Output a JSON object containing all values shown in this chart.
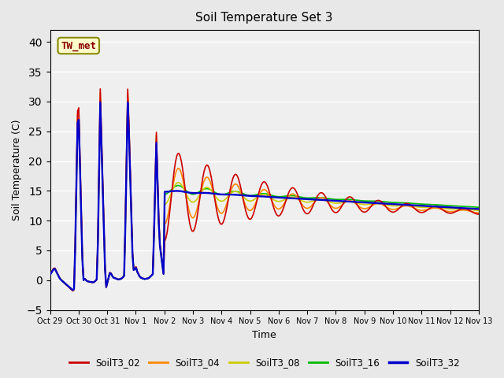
{
  "title": "Soil Temperature Set 3",
  "xlabel": "Time",
  "ylabel": "Soil Temperature (C)",
  "ylim": [
    -5,
    42
  ],
  "yticks": [
    -5,
    0,
    5,
    10,
    15,
    20,
    25,
    30,
    35,
    40
  ],
  "colors": {
    "SoilT3_02": "#cc0000",
    "SoilT3_04": "#ff8800",
    "SoilT3_08": "#cccc00",
    "SoilT3_16": "#00bb00",
    "SoilT3_32": "#0000cc"
  },
  "annotation_text": "TW_met",
  "annotation_color": "#880000",
  "annotation_bg": "#ffffcc",
  "annotation_border": "#888800",
  "background_color": "#e8e8e8",
  "plot_bg": "#efefef",
  "linewidth": 1.2,
  "title_fontsize": 11
}
